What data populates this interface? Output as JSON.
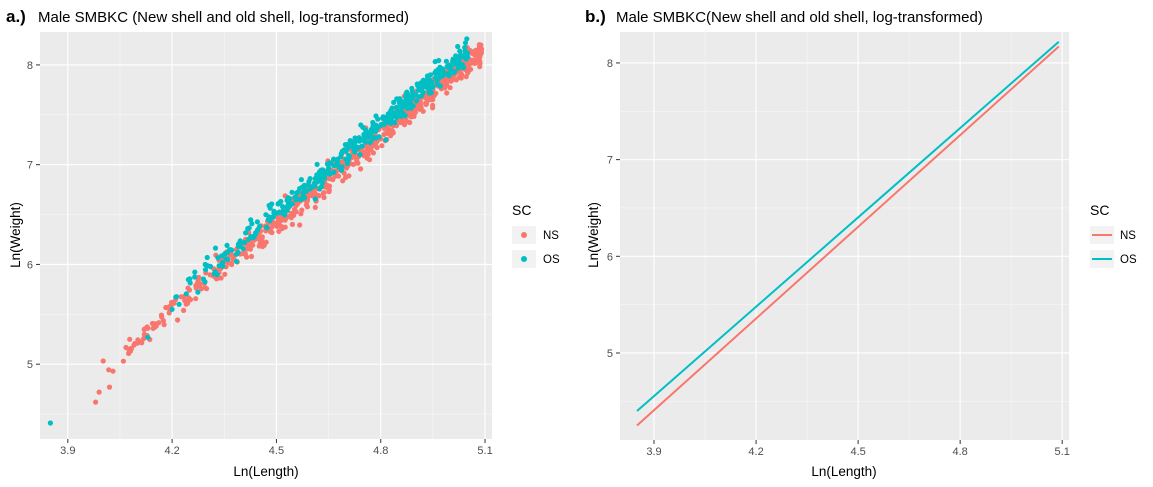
{
  "chart_data": [
    {
      "type": "scatter",
      "panel_tag": "a.)",
      "title": "Male SMBKC (New shell and old shell, log-transformed)",
      "xlabel": "Ln(Length)",
      "ylabel": "Ln(Weight)",
      "xlim": [
        3.82,
        5.12
      ],
      "ylim": [
        4.25,
        8.33
      ],
      "xticks": [
        3.9,
        4.2,
        4.5,
        4.8,
        5.1
      ],
      "xtick_labels": [
        "3.9",
        "4.2",
        "4.5",
        "4.8",
        "5.1"
      ],
      "yticks": [
        5,
        6,
        7,
        8
      ],
      "ytick_labels": [
        "5",
        "6",
        "7",
        "8"
      ],
      "legend": {
        "title": "SC",
        "position": "right",
        "entries": [
          "NS",
          "OS"
        ]
      },
      "grid": true,
      "series": [
        {
          "name": "NS",
          "color": "#F8766D",
          "trend": {
            "slope": 2.93,
            "intercept": -6.76,
            "x_range": [
              3.98,
              5.09
            ],
            "approx_count": 650,
            "spread": 0.07
          },
          "points": [
            [
              3.98,
              4.62
            ],
            [
              3.99,
              4.72
            ],
            [
              4.02,
              4.77
            ],
            [
              4.03,
              4.93
            ],
            [
              4.06,
              5.03
            ],
            [
              4.08,
              5.13
            ],
            [
              4.09,
              5.19
            ],
            [
              4.1,
              5.21
            ],
            [
              4.12,
              5.3
            ],
            [
              4.13,
              5.36
            ],
            [
              5.09,
              8.16
            ],
            [
              5.04,
              8.05
            ],
            [
              5.05,
              7.92
            ]
          ]
        },
        {
          "name": "OS",
          "color": "#00BFC4",
          "trend": {
            "slope": 2.93,
            "intercept": -6.66,
            "x_range": [
              4.2,
              5.05
            ],
            "approx_count": 420,
            "spread": 0.06
          },
          "points": [
            [
              3.85,
              4.41
            ],
            [
              4.13,
              5.27
            ],
            [
              4.2,
              5.55
            ],
            [
              4.22,
              5.6
            ],
            [
              4.31,
              5.98
            ],
            [
              4.36,
              6.05
            ],
            [
              5.03,
              8.1
            ],
            [
              5.04,
              8.08
            ]
          ]
        }
      ]
    },
    {
      "type": "line",
      "panel_tag": "b.)",
      "title": "Male SMBKC(New shell and old shell, log-transformed)",
      "xlabel": "Ln(Length)",
      "ylabel": "Ln(Weight)",
      "xlim": [
        3.8,
        5.12
      ],
      "ylim": [
        4.1,
        8.32
      ],
      "xticks": [
        3.9,
        4.2,
        4.5,
        4.8,
        5.1
      ],
      "xtick_labels": [
        "3.9",
        "4.2",
        "4.5",
        "4.8",
        "5.1"
      ],
      "yticks": [
        5,
        6,
        7,
        8
      ],
      "ytick_labels": [
        "5",
        "6",
        "7",
        "8"
      ],
      "legend": {
        "title": "SC",
        "position": "right",
        "entries": [
          "NS",
          "OS"
        ]
      },
      "grid": true,
      "series": [
        {
          "name": "NS",
          "color": "#F8766D",
          "x": [
            3.85,
            5.09
          ],
          "y": [
            4.25,
            8.17
          ]
        },
        {
          "name": "OS",
          "color": "#00BFC4",
          "x": [
            3.85,
            5.09
          ],
          "y": [
            4.4,
            8.22
          ]
        }
      ]
    }
  ]
}
